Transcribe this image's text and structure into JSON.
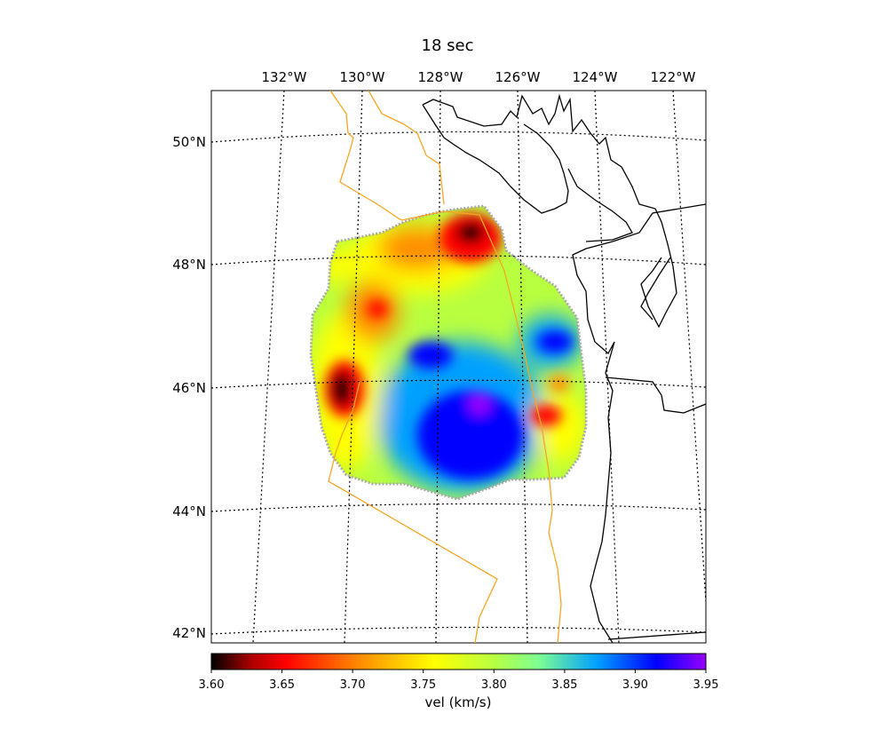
{
  "title": "18 sec",
  "lon_labels": [
    "132°W",
    "130°W",
    "128°W",
    "126°W",
    "124°W",
    "122°W"
  ],
  "lat_labels": [
    "50°N",
    "48°N",
    "46°N",
    "44°N",
    "42°N"
  ],
  "colorbar": {
    "label": "vel (km/s)",
    "ticks": [
      "3.60",
      "3.65",
      "3.70",
      "3.75",
      "3.80",
      "3.85",
      "3.90",
      "3.95"
    ],
    "range": [
      3.6,
      3.95
    ],
    "colormap_stops": [
      "#000000",
      "#ff0000",
      "#ff8c00",
      "#ffff00",
      "#88ff88",
      "#00a0ff",
      "#0000ff",
      "#9900ff"
    ]
  },
  "colors": {
    "coastline": "#000000",
    "plate_boundary": "#f5a623",
    "data_outline": "#aaaaaa"
  }
}
